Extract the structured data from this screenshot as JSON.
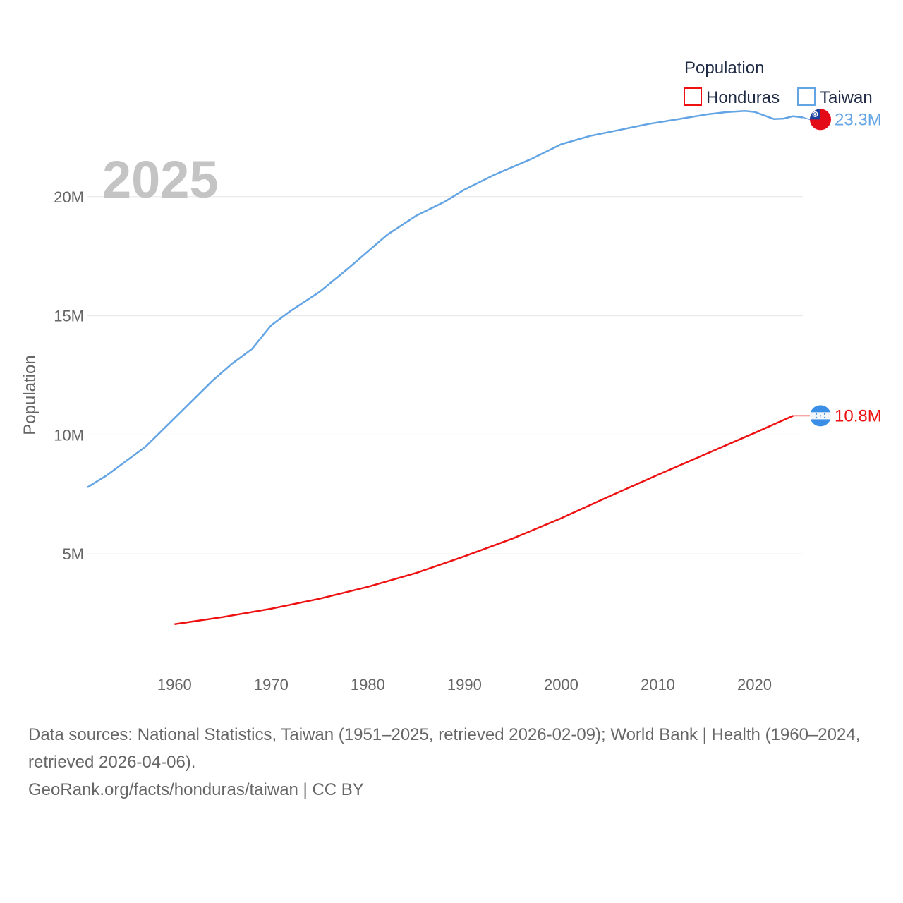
{
  "chart_data": {
    "type": "line",
    "current_year_label": "2025",
    "ylabel": "Population",
    "legend": {
      "title": "Population",
      "position": "top-right"
    },
    "xlim": [
      1951,
      2025
    ],
    "ylim": [
      0,
      25000000
    ],
    "x_ticks": [
      1960,
      1970,
      1980,
      1990,
      2000,
      2010,
      2020
    ],
    "x_tick_labels": [
      "1960",
      "1970",
      "1980",
      "1990",
      "2000",
      "2010",
      "2020"
    ],
    "y_ticks": [
      5000000,
      10000000,
      15000000,
      20000000
    ],
    "y_tick_labels": [
      "5M",
      "10M",
      "15M",
      "20M"
    ],
    "series": [
      {
        "name": "Honduras",
        "color": "#ee1111",
        "end_label": "10.8M",
        "flag": "honduras-flag",
        "points": [
          [
            1960,
            2050000
          ],
          [
            1965,
            2350000
          ],
          [
            1970,
            2700000
          ],
          [
            1975,
            3120000
          ],
          [
            1980,
            3620000
          ],
          [
            1985,
            4200000
          ],
          [
            1990,
            4900000
          ],
          [
            1995,
            5650000
          ],
          [
            2000,
            6500000
          ],
          [
            2005,
            7420000
          ],
          [
            2010,
            8320000
          ],
          [
            2015,
            9200000
          ],
          [
            2020,
            10080000
          ],
          [
            2024,
            10800000
          ]
        ]
      },
      {
        "name": "Taiwan",
        "color": "#63a4e4",
        "end_label": "23.3M",
        "flag": "taiwan-flag",
        "points": [
          [
            1951,
            7800000
          ],
          [
            1953,
            8300000
          ],
          [
            1955,
            8900000
          ],
          [
            1957,
            9500000
          ],
          [
            1958,
            9900000
          ],
          [
            1960,
            10700000
          ],
          [
            1962,
            11500000
          ],
          [
            1964,
            12300000
          ],
          [
            1966,
            13000000
          ],
          [
            1968,
            13600000
          ],
          [
            1970,
            14600000
          ],
          [
            1972,
            15200000
          ],
          [
            1975,
            16000000
          ],
          [
            1978,
            17000000
          ],
          [
            1980,
            17700000
          ],
          [
            1982,
            18400000
          ],
          [
            1985,
            19200000
          ],
          [
            1988,
            19800000
          ],
          [
            1990,
            20300000
          ],
          [
            1993,
            20900000
          ],
          [
            1997,
            21600000
          ],
          [
            2000,
            22200000
          ],
          [
            2003,
            22550000
          ],
          [
            2006,
            22800000
          ],
          [
            2009,
            23050000
          ],
          [
            2012,
            23250000
          ],
          [
            2015,
            23450000
          ],
          [
            2017,
            23550000
          ],
          [
            2019,
            23600000
          ],
          [
            2020,
            23560000
          ],
          [
            2022,
            23260000
          ],
          [
            2023,
            23280000
          ],
          [
            2024,
            23380000
          ],
          [
            2025,
            23330000
          ]
        ]
      }
    ]
  },
  "footer": {
    "sources": "Data sources: National Statistics, Taiwan (1951–2025, retrieved 2026-02-09); World Bank | Health (1960–2024, retrieved 2026-04-06).",
    "credit": "GeoRank.org/facts/honduras/taiwan | CC BY"
  }
}
